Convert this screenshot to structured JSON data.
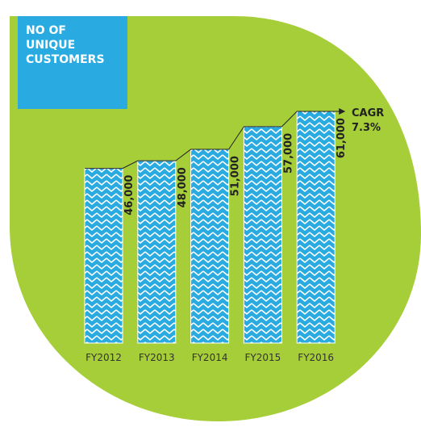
{
  "chart_data": {
    "type": "bar",
    "title": [
      "NO OF",
      "UNIQUE",
      "CUSTOMERS"
    ],
    "categories": [
      "FY2012",
      "FY2013",
      "FY2014",
      "FY2015",
      "FY2016"
    ],
    "values": [
      46000,
      48000,
      51000,
      57000,
      61000
    ],
    "value_labels": [
      "46,000",
      "48,000",
      "51,000",
      "57,000",
      "61,000"
    ],
    "color": "#29abe2",
    "annotation": [
      "CAGR",
      "7.3%"
    ]
  }
}
